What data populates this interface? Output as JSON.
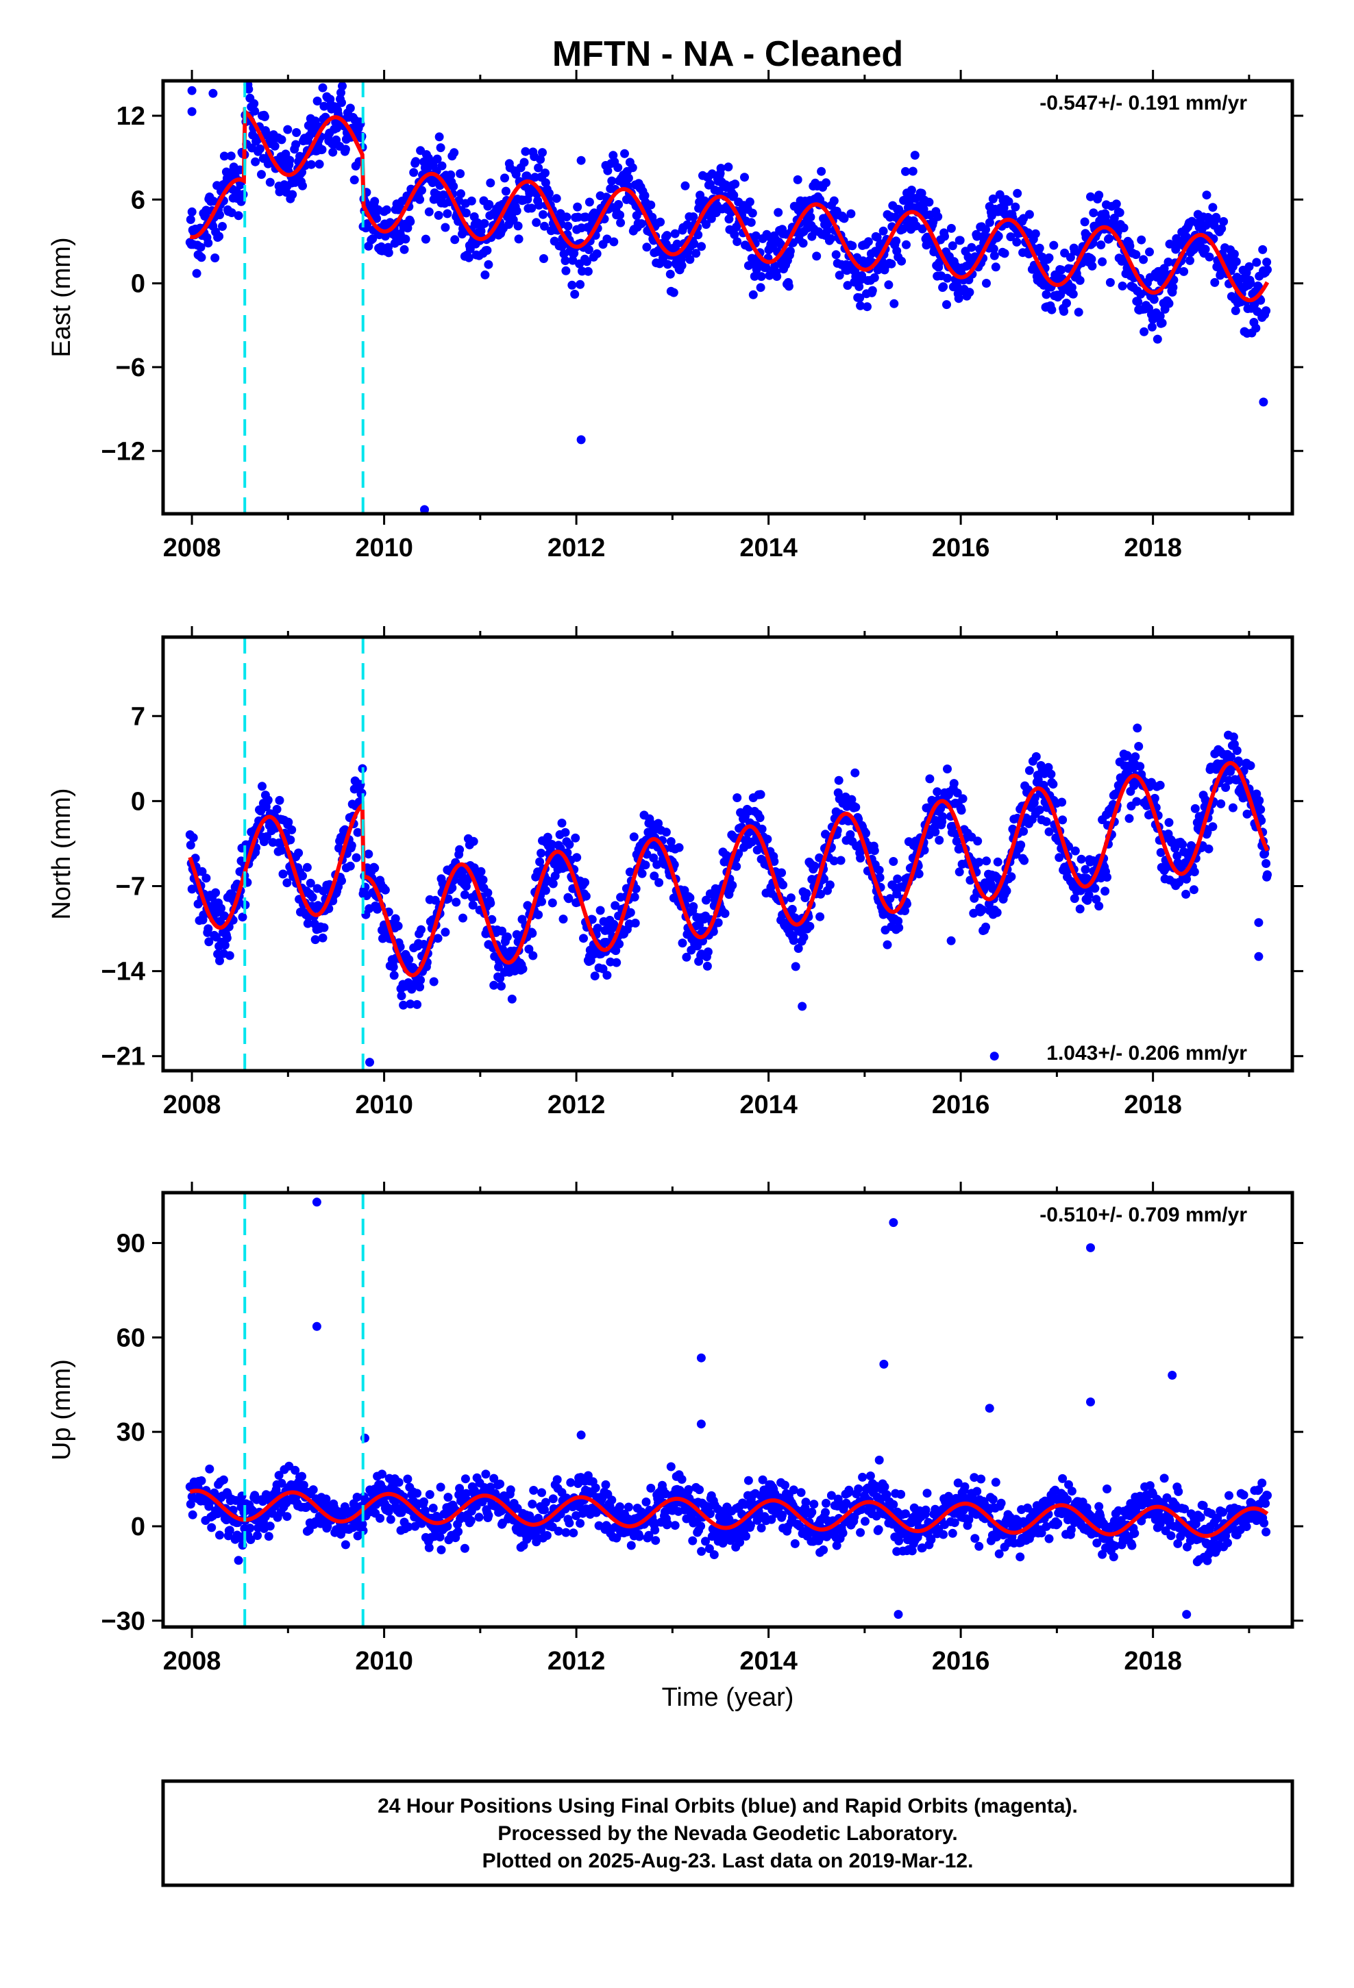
{
  "title": "MFTN  - NA - Cleaned",
  "xlabel": "Time (year)",
  "footer": {
    "line1": "24 Hour Positions Using Final Orbits (blue) and Rapid Orbits (magenta).",
    "line2": "Processed by the Nevada Geodetic Laboratory.",
    "line3": "Plotted on 2025-Aug-23. Last data on 2019-Mar-12."
  },
  "colors": {
    "points": "#0000ff",
    "model": "#ff0000",
    "offsets": "#00e5ee",
    "frame": "#000000"
  },
  "chart_data": [
    {
      "type": "scatter",
      "name": "east",
      "ylabel": "East (mm)",
      "rate_label": "-0.547+/- 0.191 mm/yr",
      "rate_position": "top-right",
      "xlim": [
        2007.7,
        2019.45
      ],
      "ylim": [
        -16.5,
        14.5
      ],
      "xticks": [
        2008,
        2010,
        2012,
        2014,
        2016,
        2018
      ],
      "yticks": [
        12,
        6,
        0,
        -6,
        -12
      ],
      "offset_lines_x": [
        2008.55,
        2009.78
      ],
      "time_range": [
        2007.98,
        2019.19
      ],
      "model": {
        "rate": -0.547,
        "mean": 2.5,
        "annual_amplitude": 2.2,
        "annual_phase": 0.25,
        "offsets": [
          {
            "x": 2008.55,
            "step": 5.0
          },
          {
            "x": 2009.78,
            "step": -3.5
          }
        ]
      },
      "scatter_sd": 1.3,
      "outliers": [
        [
          2008.0,
          12.3
        ],
        [
          2008.0,
          13.8
        ],
        [
          2008.22,
          13.6
        ],
        [
          2012.05,
          8.8
        ],
        [
          2012.05,
          -11.2
        ],
        [
          2013.75,
          7.6
        ],
        [
          2010.42,
          -16.2
        ],
        [
          2016.3,
          5.5
        ],
        [
          2017.35,
          6.2
        ],
        [
          2019.15,
          -8.5
        ]
      ]
    },
    {
      "type": "scatter",
      "name": "north",
      "ylabel": "North (mm)",
      "rate_label": "1.043+/- 0.206 mm/yr",
      "rate_position": "bottom-right",
      "xlim": [
        2007.7,
        2019.45
      ],
      "ylim": [
        -22.2,
        13.5
      ],
      "xticks": [
        2008,
        2010,
        2012,
        2014,
        2016,
        2018
      ],
      "yticks": [
        7,
        0,
        -7,
        -14,
        -21
      ],
      "offset_lines_x": [
        2008.55,
        2009.78
      ],
      "time_range": [
        2007.98,
        2019.19
      ],
      "model": {
        "rate": 1.043,
        "mean": -0.7,
        "annual_amplitude": 4.3,
        "annual_phase": 0.55,
        "offsets": [
          {
            "x": 2009.78,
            "step": -6.0
          }
        ]
      },
      "scatter_sd": 1.4,
      "outliers": [
        [
          2009.85,
          -21.5
        ],
        [
          2010.2,
          -16.8
        ],
        [
          2010.35,
          -14.0
        ],
        [
          2013.3,
          -10.9
        ],
        [
          2014.35,
          -16.9
        ],
        [
          2014.25,
          -11.2
        ],
        [
          2016.35,
          -21.0
        ],
        [
          2019.1,
          -12.8
        ],
        [
          2019.1,
          -10.0
        ],
        [
          2015.9,
          -11.5
        ]
      ]
    },
    {
      "type": "scatter",
      "name": "up",
      "ylabel": "Up (mm)",
      "rate_label": "-0.510+/- 0.709 mm/yr",
      "rate_position": "top-right",
      "xlim": [
        2007.7,
        2019.45
      ],
      "ylim": [
        -32,
        106
      ],
      "xticks": [
        2008,
        2010,
        2012,
        2014,
        2016,
        2018
      ],
      "yticks": [
        90,
        60,
        30,
        0,
        -30
      ],
      "offset_lines_x": [
        2008.55,
        2009.78
      ],
      "time_range": [
        2007.98,
        2019.19
      ],
      "model": {
        "rate": -0.51,
        "mean": 4.0,
        "annual_amplitude": 4.5,
        "annual_phase": 0.8,
        "offsets": []
      },
      "scatter_sd": 4.0,
      "outliers": [
        [
          2009.3,
          103
        ],
        [
          2009.3,
          63.5
        ],
        [
          2013.3,
          53.5
        ],
        [
          2013.3,
          32.5
        ],
        [
          2015.2,
          51.5
        ],
        [
          2015.3,
          96.5
        ],
        [
          2016.3,
          37.5
        ],
        [
          2017.35,
          88.5
        ],
        [
          2017.35,
          39.5
        ],
        [
          2018.2,
          48.0
        ],
        [
          2009.8,
          28.0
        ],
        [
          2012.05,
          29.0
        ],
        [
          2015.35,
          -28.0
        ],
        [
          2018.35,
          -28.0
        ]
      ]
    }
  ]
}
